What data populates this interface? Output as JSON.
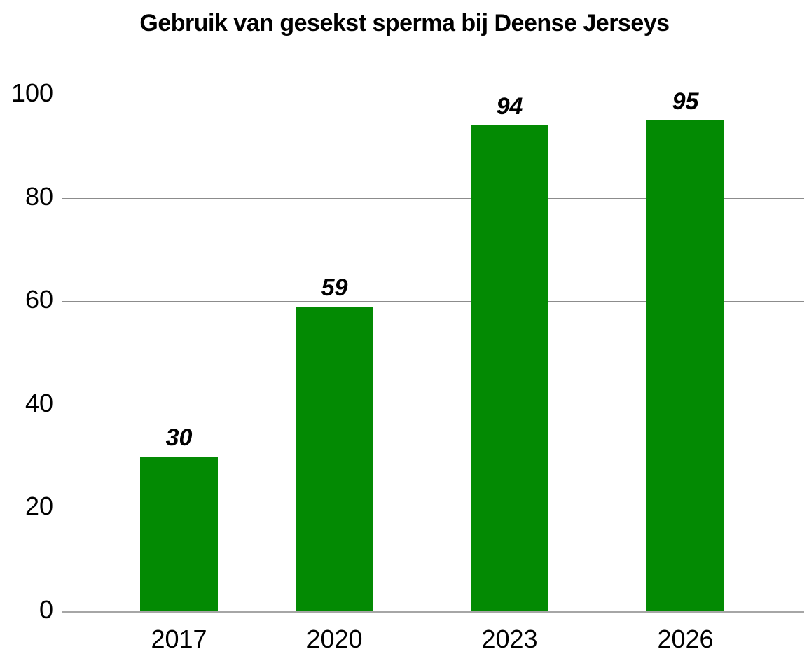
{
  "chart_data": {
    "type": "bar",
    "title": "Gebruik van gesekst sperma bij Deense Jerseys",
    "xlabel": "",
    "ylabel": "",
    "categories": [
      "2017",
      "2020",
      "2023",
      "2026"
    ],
    "values": [
      30,
      59,
      94,
      95
    ],
    "data_labels": [
      "30",
      "59",
      "94",
      "95"
    ],
    "ylim": [
      0,
      100
    ],
    "yticks": [
      "0",
      "20",
      "40",
      "60",
      "80",
      "100"
    ],
    "grid": true,
    "legend": null,
    "bar_color": "#038a03"
  }
}
